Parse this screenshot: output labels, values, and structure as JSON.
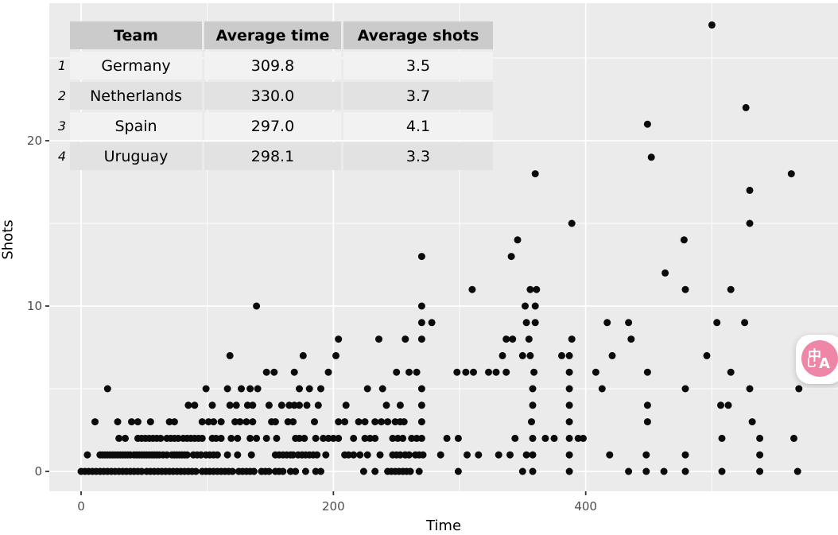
{
  "chart": {
    "xlabel": "Time",
    "ylabel": "Shots",
    "x_tick_labels": [
      "0",
      "200",
      "400"
    ],
    "y_tick_labels": [
      "0",
      "10",
      "20"
    ]
  },
  "chart_data": {
    "type": "scatter",
    "title": "",
    "xlabel": "Time",
    "ylabel": "Shots",
    "xlim": [
      -25,
      600
    ],
    "ylim": [
      -1.5,
      28.5
    ],
    "x_ticks": [
      0,
      200,
      400
    ],
    "x_minor_ticks": [
      100,
      300,
      500
    ],
    "y_ticks": [
      0,
      10,
      20
    ],
    "y_minor_ticks": [
      5,
      15,
      25
    ],
    "grid": "major-minor-white-on-gray",
    "legend": false,
    "point_color": "#0B0B0B",
    "panel_color": "#EBEBEB",
    "points_by_shots": [
      {
        "shots": 0,
        "times": [
          0,
          3,
          6,
          9,
          12,
          15,
          18,
          21,
          24,
          27,
          30,
          33,
          36,
          39,
          42,
          45,
          48,
          52,
          55,
          58,
          61,
          64,
          67,
          70,
          73,
          76,
          79,
          82,
          85,
          88,
          91,
          96,
          99,
          102,
          105,
          108,
          111,
          114,
          117,
          120,
          125,
          128,
          131,
          134,
          137,
          143,
          146,
          149,
          154,
          157,
          160,
          166,
          170,
          178,
          186,
          190,
          224,
          233,
          243,
          246,
          249,
          252,
          255,
          258,
          261,
          268,
          299,
          350,
          358,
          387,
          434,
          448,
          462,
          479,
          508,
          538,
          568
        ]
      },
      {
        "shots": 1,
        "times": [
          5,
          15,
          17,
          19,
          21,
          23,
          25,
          27,
          29,
          31,
          33,
          35,
          37,
          39,
          42,
          44,
          46,
          48,
          50,
          52,
          54,
          56,
          58,
          60,
          62,
          65,
          68,
          72,
          74,
          76,
          78,
          80,
          82,
          84,
          89,
          92,
          95,
          99,
          102,
          105,
          108,
          116,
          124,
          135,
          154,
          157,
          160,
          163,
          166,
          168,
          172,
          175,
          178,
          181,
          184,
          187,
          194,
          209,
          212,
          216,
          221,
          227,
          237,
          247,
          250,
          253,
          257,
          260,
          265,
          268,
          271,
          285,
          306,
          315,
          331,
          340,
          353,
          358,
          387,
          419,
          448,
          479,
          538
        ]
      },
      {
        "shots": 2,
        "times": [
          30,
          35,
          45,
          48,
          51,
          54,
          57,
          60,
          63,
          68,
          71,
          74,
          77,
          81,
          84,
          87,
          90,
          93,
          96,
          104,
          107,
          111,
          119,
          124,
          134,
          139,
          147,
          155,
          170,
          173,
          177,
          186,
          192,
          196,
          200,
          204,
          216,
          225,
          229,
          233,
          247,
          251,
          255,
          262,
          266,
          270,
          290,
          299,
          344,
          358,
          368,
          375,
          387,
          394,
          398,
          508,
          538,
          565
        ]
      },
      {
        "shots": 3,
        "times": [
          11,
          29,
          40,
          45,
          55,
          70,
          74,
          96,
          101,
          105,
          111,
          122,
          126,
          131,
          136,
          151,
          154,
          164,
          168,
          185,
          204,
          209,
          220,
          225,
          233,
          238,
          243,
          249,
          253,
          256,
          270,
          357,
          387,
          449,
          532
        ]
      },
      {
        "shots": 4,
        "times": [
          85,
          90,
          104,
          118,
          123,
          132,
          136,
          149,
          159,
          165,
          169,
          173,
          179,
          188,
          210,
          242,
          253,
          270,
          358,
          387,
          449,
          507,
          513
        ]
      },
      {
        "shots": 5,
        "times": [
          21,
          99,
          116,
          127,
          134,
          140,
          173,
          181,
          190,
          227,
          239,
          270,
          358,
          387,
          413,
          479,
          530,
          569
        ]
      },
      {
        "shots": 6,
        "times": [
          147,
          153,
          169,
          196,
          250,
          260,
          266,
          298,
          305,
          311,
          323,
          329,
          337,
          359,
          387,
          408,
          449,
          515
        ]
      },
      {
        "shots": 7,
        "times": [
          118,
          176,
          202,
          334,
          350,
          356,
          381,
          387,
          421,
          496
        ]
      },
      {
        "shots": 8,
        "times": [
          204,
          236,
          257,
          270,
          337,
          342,
          355,
          389,
          436
        ]
      },
      {
        "shots": 9,
        "times": [
          270,
          278,
          353,
          360,
          417,
          434,
          504,
          526
        ]
      },
      {
        "shots": 10,
        "times": [
          139,
          270,
          352,
          360
        ]
      },
      {
        "shots": 11,
        "times": [
          310,
          356,
          361,
          479,
          515
        ]
      },
      {
        "shots": 12,
        "times": [
          463
        ]
      },
      {
        "shots": 13,
        "times": [
          270,
          341
        ]
      },
      {
        "shots": 14,
        "times": [
          346,
          478
        ]
      },
      {
        "shots": 15,
        "times": [
          389,
          530
        ]
      },
      {
        "shots": 17,
        "times": [
          530
        ]
      },
      {
        "shots": 18,
        "times": [
          360,
          563
        ]
      },
      {
        "shots": 19,
        "times": [
          452
        ]
      },
      {
        "shots": 21,
        "times": [
          449
        ]
      },
      {
        "shots": 22,
        "times": [
          527
        ]
      },
      {
        "shots": 27,
        "times": [
          500
        ]
      }
    ]
  },
  "table": {
    "headers": [
      "Team",
      "Average time",
      "Average shots"
    ],
    "rows": [
      {
        "index": "1",
        "team": "Germany",
        "avg_time": "309.8",
        "avg_shots": "3.5"
      },
      {
        "index": "2",
        "team": "Netherlands",
        "avg_time": "330.0",
        "avg_shots": "3.7"
      },
      {
        "index": "3",
        "team": "Spain",
        "avg_time": "297.0",
        "avg_shots": "4.1"
      },
      {
        "index": "4",
        "team": "Uruguay",
        "avg_time": "298.1",
        "avg_shots": "3.3"
      }
    ]
  },
  "widgets": {
    "translate_button": {
      "glyph_primary": "中",
      "glyph_secondary": "A",
      "glyph_accent": "乚"
    }
  },
  "colors": {
    "panel": "#EBEBEB",
    "grid": "#FFFFFF",
    "point": "#0B0B0B",
    "tick_label": "#4D4D4D",
    "table_header_bg": "#CBCBCB",
    "table_row_odd_bg": "#F2F2F2",
    "table_row_even_bg": "#E2E2E2",
    "translate_pink": "#EE87A7"
  }
}
